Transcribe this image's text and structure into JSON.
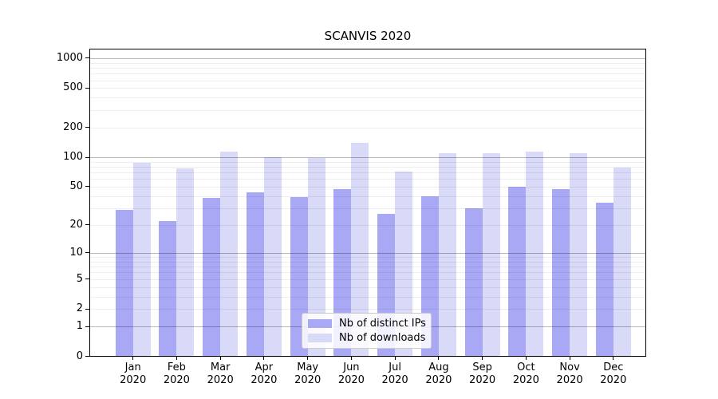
{
  "title": "SCANVIS 2020",
  "chart_data": {
    "type": "bar",
    "title": "SCANVIS 2020",
    "categories": [
      {
        "month": "Jan",
        "year": "2020"
      },
      {
        "month": "Feb",
        "year": "2020"
      },
      {
        "month": "Mar",
        "year": "2020"
      },
      {
        "month": "Apr",
        "year": "2020"
      },
      {
        "month": "May",
        "year": "2020"
      },
      {
        "month": "Jun",
        "year": "2020"
      },
      {
        "month": "Jul",
        "year": "2020"
      },
      {
        "month": "Aug",
        "year": "2020"
      },
      {
        "month": "Sep",
        "year": "2020"
      },
      {
        "month": "Oct",
        "year": "2020"
      },
      {
        "month": "Nov",
        "year": "2020"
      },
      {
        "month": "Dec",
        "year": "2020"
      }
    ],
    "series": [
      {
        "name": "Nb of distinct IPs",
        "color": "#a8a8f5",
        "values": [
          29,
          22,
          38,
          44,
          39,
          47,
          26,
          40,
          30,
          50,
          47,
          34
        ]
      },
      {
        "name": "Nb of downloads",
        "color": "#d9d9f8",
        "values": [
          87,
          77,
          114,
          100,
          98,
          140,
          72,
          110,
          110,
          114,
          110,
          78
        ]
      }
    ],
    "y_axis": {
      "scale": "log1p",
      "ticks": [
        0,
        1,
        2,
        5,
        10,
        20,
        50,
        100,
        200,
        500,
        1000
      ],
      "major_gridlines": [
        1,
        10,
        100,
        1000
      ],
      "ylim": [
        0,
        1200
      ]
    },
    "x_axis": {
      "label_lines": 2
    },
    "legend_position": "lower center",
    "grid": true
  }
}
